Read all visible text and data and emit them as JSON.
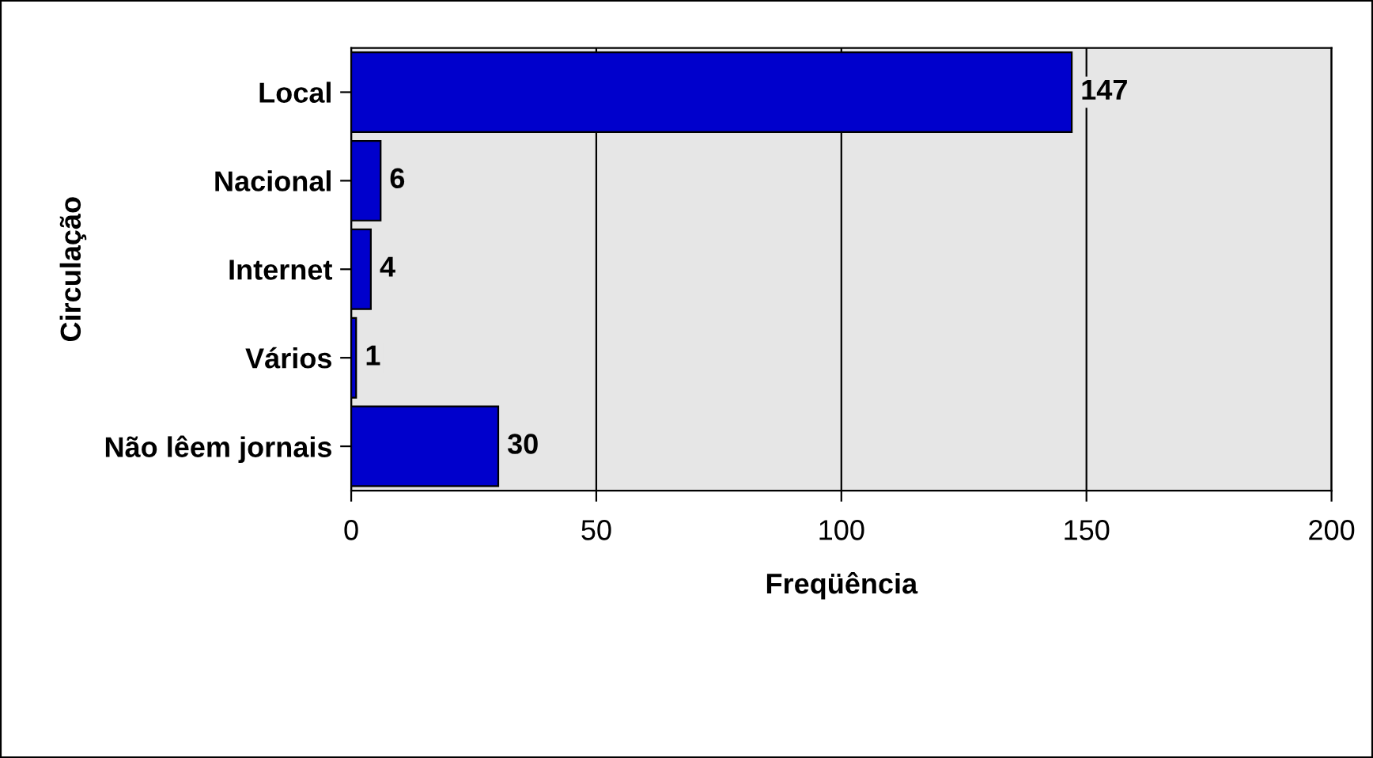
{
  "chart_data": {
    "type": "bar",
    "orientation": "horizontal",
    "xlabel": "Freqüência",
    "ylabel": "Circulação",
    "categories": [
      "Local",
      "Nacional",
      "Internet",
      "Vários",
      "Não lêem jornais"
    ],
    "values": [
      147,
      6,
      4,
      1,
      30
    ],
    "color": "#0000cc",
    "xlim": [
      0,
      200
    ],
    "xticks": [
      0,
      50,
      100,
      150,
      200
    ],
    "grid": "x",
    "data_labels": true
  }
}
